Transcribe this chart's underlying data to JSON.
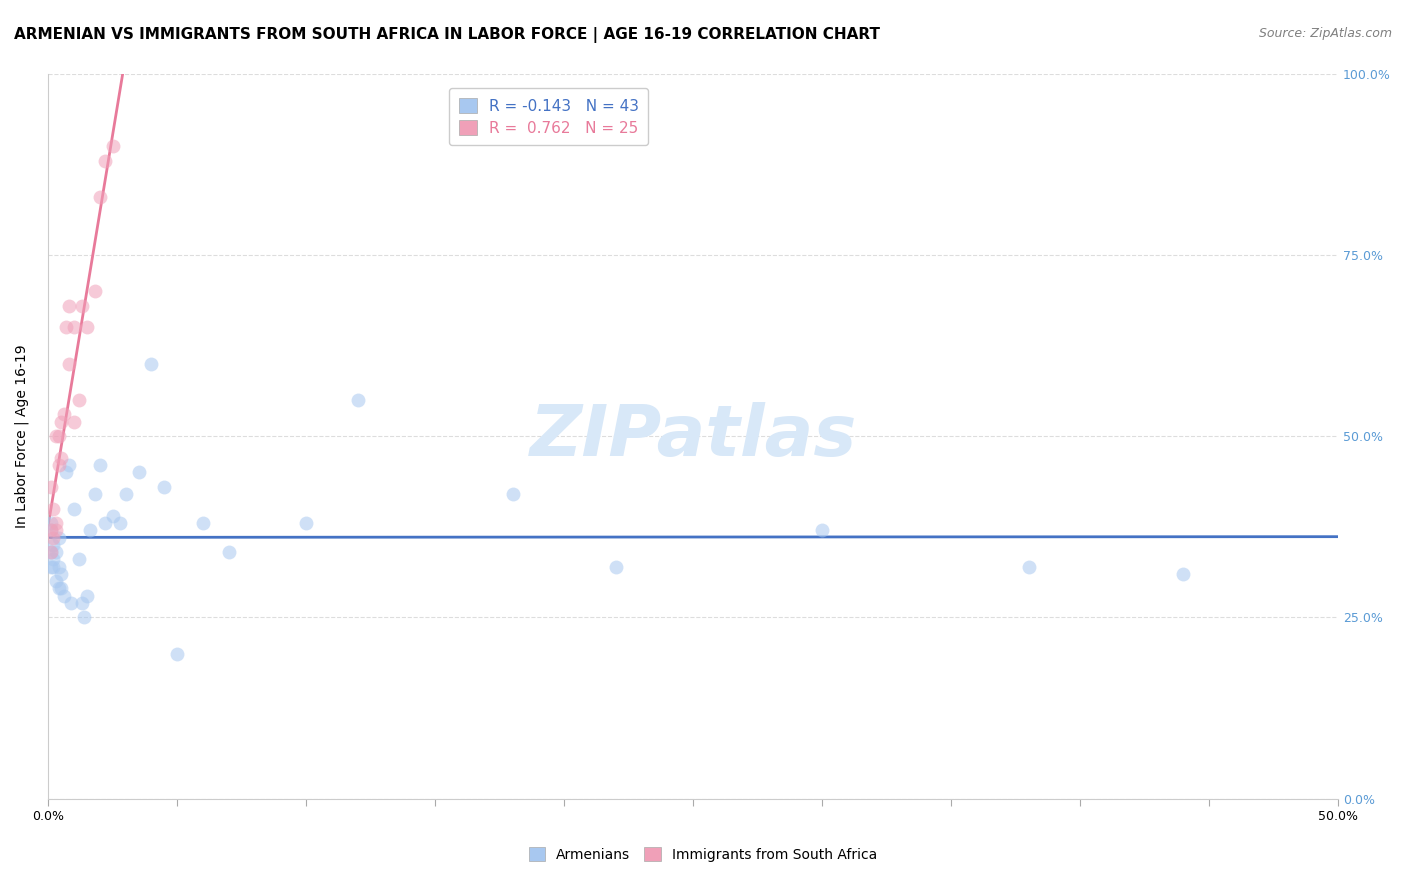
{
  "title": "ARMENIAN VS IMMIGRANTS FROM SOUTH AFRICA IN LABOR FORCE | AGE 16-19 CORRELATION CHART",
  "source": "Source: ZipAtlas.com",
  "ylabel": "In Labor Force | Age 16-19",
  "xlim": [
    0.0,
    0.5
  ],
  "ylim": [
    0.0,
    1.0
  ],
  "x_ticks": [
    0.0,
    0.05,
    0.1,
    0.15,
    0.2,
    0.25,
    0.3,
    0.35,
    0.4,
    0.45,
    0.5
  ],
  "x_tick_labels_show": [
    0.0,
    0.25,
    0.5
  ],
  "y_ticks": [
    0.0,
    0.25,
    0.5,
    0.75,
    1.0
  ],
  "y_tick_labels_right": [
    "0.0%",
    "25.0%",
    "50.0%",
    "75.0%",
    "100.0%"
  ],
  "armenian_x": [
    0.001,
    0.002,
    0.001,
    0.003,
    0.002,
    0.001,
    0.004,
    0.002,
    0.003,
    0.001,
    0.005,
    0.004,
    0.006,
    0.004,
    0.007,
    0.005,
    0.008,
    0.012,
    0.01,
    0.009,
    0.013,
    0.015,
    0.014,
    0.016,
    0.018,
    0.02,
    0.022,
    0.025,
    0.028,
    0.03,
    0.035,
    0.04,
    0.045,
    0.05,
    0.06,
    0.07,
    0.1,
    0.12,
    0.18,
    0.22,
    0.3,
    0.38,
    0.44
  ],
  "armenian_y": [
    0.38,
    0.35,
    0.32,
    0.34,
    0.33,
    0.37,
    0.36,
    0.32,
    0.3,
    0.34,
    0.31,
    0.29,
    0.28,
    0.32,
    0.45,
    0.29,
    0.46,
    0.33,
    0.4,
    0.27,
    0.27,
    0.28,
    0.25,
    0.37,
    0.42,
    0.46,
    0.38,
    0.39,
    0.38,
    0.42,
    0.45,
    0.6,
    0.43,
    0.2,
    0.38,
    0.34,
    0.38,
    0.55,
    0.42,
    0.32,
    0.37,
    0.32,
    0.31
  ],
  "sa_x": [
    0.001,
    0.001,
    0.002,
    0.003,
    0.002,
    0.001,
    0.003,
    0.003,
    0.004,
    0.004,
    0.005,
    0.005,
    0.006,
    0.007,
    0.008,
    0.008,
    0.01,
    0.01,
    0.012,
    0.013,
    0.015,
    0.018,
    0.02,
    0.022,
    0.025
  ],
  "sa_y": [
    0.34,
    0.37,
    0.36,
    0.37,
    0.4,
    0.43,
    0.38,
    0.5,
    0.46,
    0.5,
    0.52,
    0.47,
    0.53,
    0.65,
    0.68,
    0.6,
    0.52,
    0.65,
    0.55,
    0.68,
    0.65,
    0.7,
    0.83,
    0.88,
    0.9
  ],
  "blue_color": "#a8c8f0",
  "pink_color": "#f0a0b8",
  "blue_line_color": "#4472c4",
  "pink_line_color": "#e87a9a",
  "watermark_text": "ZIPatlas",
  "watermark_color": "#d8e8f8",
  "background_color": "#ffffff",
  "grid_color": "#dddddd",
  "title_fontsize": 11,
  "axis_label_fontsize": 10,
  "tick_fontsize": 9,
  "source_fontsize": 9,
  "legend_fontsize": 11,
  "dot_size": 100,
  "dot_alpha": 0.55,
  "right_tick_color": "#5b9bd5",
  "legend_r_blue": "R = -0.143",
  "legend_n_blue": "N = 43",
  "legend_r_pink": "R =  0.762",
  "legend_n_pink": "N = 25"
}
